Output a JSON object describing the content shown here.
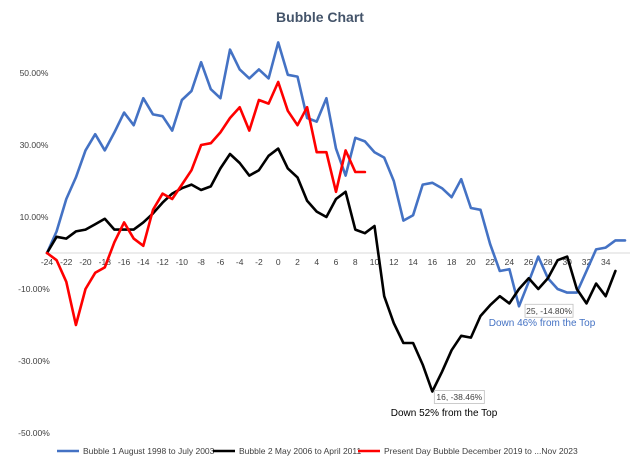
{
  "chart_data": {
    "type": "line",
    "title": "Bubble Chart",
    "xlabel": "",
    "ylabel": "",
    "xlim": [
      -24,
      36
    ],
    "ylim": [
      -50,
      60
    ],
    "x_ticks": [
      -24,
      -22,
      -20,
      -18,
      -16,
      -14,
      -12,
      -10,
      -8,
      -6,
      -4,
      -2,
      0,
      2,
      4,
      6,
      8,
      10,
      12,
      14,
      16,
      18,
      20,
      22,
      24,
      26,
      28,
      30,
      32,
      34
    ],
    "y_ticks": [
      {
        "value": 50,
        "label": "50.00%"
      },
      {
        "value": 30,
        "label": "30.00%"
      },
      {
        "value": 10,
        "label": "10.00%"
      },
      {
        "value": -10,
        "label": "-10.00%"
      },
      {
        "value": -30,
        "label": "-30.00%"
      },
      {
        "value": -50,
        "label": "-50.00%"
      }
    ],
    "grid": false,
    "legend_position": "bottom",
    "series": [
      {
        "name": "Bubble 1 August 1998 to July 2003",
        "color": "#4472c4",
        "x": [
          -24,
          -23,
          -22,
          -21,
          -20,
          -19,
          -18,
          -17,
          -16,
          -15,
          -14,
          -13,
          -12,
          -11,
          -10,
          -9,
          -8,
          -7,
          -6,
          -5,
          -4,
          -3,
          -2,
          -1,
          0,
          1,
          2,
          3,
          4,
          5,
          6,
          7,
          8,
          9,
          10,
          11,
          12,
          13,
          14,
          15,
          16,
          17,
          18,
          19,
          20,
          21,
          22,
          23,
          24,
          25,
          26,
          27,
          28,
          29,
          30,
          31,
          32,
          33,
          34,
          35,
          36
        ],
        "y": [
          0,
          6,
          15,
          21,
          28.5,
          33,
          28.5,
          33.5,
          39,
          35.5,
          43,
          38.5,
          38,
          34,
          42.5,
          45,
          53,
          45.5,
          43,
          56.5,
          51,
          48.5,
          51,
          48.5,
          58.5,
          49.5,
          49,
          37.5,
          36.5,
          43,
          29,
          21.5,
          32,
          31,
          28,
          26.5,
          20,
          9,
          10.5,
          19,
          19.5,
          18,
          15.5,
          20.5,
          12.5,
          12,
          2.5,
          -5,
          -4.5,
          -14.8,
          -8,
          -1,
          -7,
          -10,
          -11,
          -11,
          -5,
          1,
          1.5,
          3.5,
          3.5
        ]
      },
      {
        "name": "Bubble 2 May 2006 to April 2011",
        "color": "#000000",
        "x": [
          -24,
          -23,
          -22,
          -21,
          -20,
          -19,
          -18,
          -17,
          -16,
          -15,
          -14,
          -13,
          -12,
          -11,
          -10,
          -9,
          -8,
          -7,
          -6,
          -5,
          -4,
          -3,
          -2,
          -1,
          0,
          1,
          2,
          3,
          4,
          5,
          6,
          7,
          8,
          9,
          10,
          11,
          12,
          13,
          14,
          15,
          16,
          17,
          18,
          19,
          20,
          21,
          22,
          23,
          24,
          25,
          26,
          27,
          28,
          29,
          30,
          31,
          32,
          33,
          34,
          35
        ],
        "y": [
          0,
          4.5,
          4,
          6,
          6.5,
          8,
          9.5,
          6.5,
          6.5,
          6.5,
          8.5,
          11,
          14,
          16.5,
          18,
          19,
          17.5,
          18.5,
          23.5,
          27.5,
          25,
          21.5,
          23,
          27,
          29,
          23.5,
          21,
          14.5,
          11.5,
          10,
          15,
          17,
          6.5,
          5.5,
          7.5,
          -12,
          -19.5,
          -25,
          -25,
          -31,
          -38.46,
          -33,
          -27,
          -23,
          -23.5,
          -17.5,
          -14.5,
          -12,
          -14,
          -10,
          -7,
          -10,
          -7,
          -2,
          -1,
          -10,
          -14,
          -8.5,
          -12,
          -5
        ]
      },
      {
        "name": "Present Day Bubble December 2019 to ...Nov 2023",
        "color": "#ff0000",
        "x": [
          -24,
          -23,
          -22,
          -21,
          -20,
          -19,
          -18,
          -17,
          -16,
          -15,
          -14,
          -13,
          -12,
          -11,
          -10,
          -9,
          -8,
          -7,
          -6,
          -5,
          -4,
          -3,
          -2,
          -1,
          0,
          1,
          2,
          3,
          4,
          5,
          6,
          7,
          8,
          9
        ],
        "y": [
          0,
          -2,
          -8,
          -20,
          -10,
          -5.5,
          -4,
          3,
          8.5,
          4,
          2,
          12,
          16.5,
          15,
          19,
          23,
          30,
          30.5,
          33.5,
          37.5,
          40.5,
          34,
          42.5,
          41.5,
          47.5,
          39.5,
          35.5,
          40.5,
          28,
          28,
          17,
          28.5,
          22.5,
          22.5
        ]
      }
    ],
    "annotations": [
      {
        "label": "25, -14.80%",
        "x": 25,
        "y": -14.8
      },
      {
        "label": "16, -38.46%",
        "x": 16,
        "y": -38.46
      },
      {
        "text": "Down 46% from the Top",
        "color": "#4472c4"
      },
      {
        "text": "Down 52% from the Top",
        "color": "#000000"
      }
    ]
  }
}
